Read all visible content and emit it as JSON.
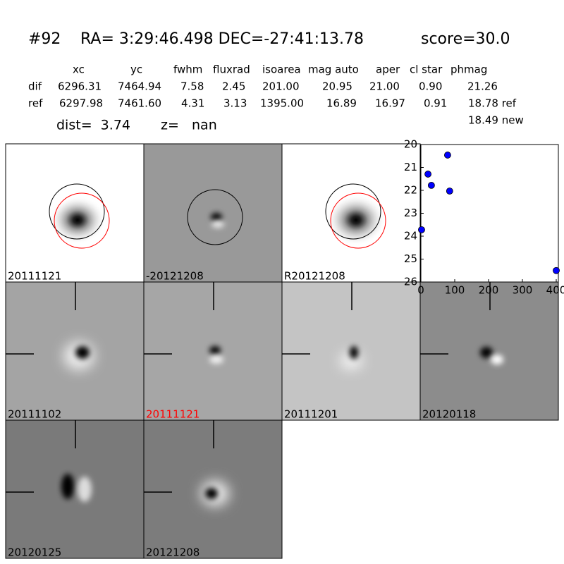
{
  "header": {
    "object": "#92",
    "coords": "RA= 3:29:46.498 DEC=-27:41:13.78",
    "score": "score=30.0"
  },
  "table": {
    "columns": [
      "xc",
      "yc",
      "fwhm",
      "fluxrad",
      "isoarea",
      "mag auto",
      "aper",
      "cl star",
      "phmag"
    ],
    "rows": [
      [
        "dif",
        "6296.31",
        "7464.94",
        "7.58",
        "2.45",
        "201.00",
        "20.95",
        "21.00",
        "0.90",
        "21.26"
      ],
      [
        "ref",
        "6297.98",
        "7461.60",
        "4.31",
        "3.13",
        "1395.00",
        "16.89",
        "16.97",
        "0.91",
        "18.78 ref"
      ]
    ],
    "extra": "18.49 new"
  },
  "dist": {
    "dist": "dist=  3.74",
    "z": "z=   nan"
  },
  "panels": [
    {
      "label": "20111121"
    },
    {
      "label": "-20121208"
    },
    {
      "label": "R20121208"
    },
    {
      "label": "20111102"
    },
    {
      "label": "20111121",
      "color": "#ff0000"
    },
    {
      "label": "20111201"
    },
    {
      "label": "20120118"
    },
    {
      "label": "20120125"
    },
    {
      "label": "20121208"
    }
  ],
  "chart_data": {
    "type": "scatter",
    "x": [
      79,
      21,
      31,
      85,
      2,
      400
    ],
    "values": [
      20.46,
      21.29,
      21.78,
      22.03,
      23.72,
      25.5
    ],
    "color": "#0000ff",
    "xlim": [
      0,
      400
    ],
    "ylim": [
      26,
      20
    ],
    "xticks": [
      0,
      100,
      200,
      300,
      400
    ],
    "yticks": [
      20,
      21,
      22,
      23,
      24,
      25,
      26
    ]
  }
}
